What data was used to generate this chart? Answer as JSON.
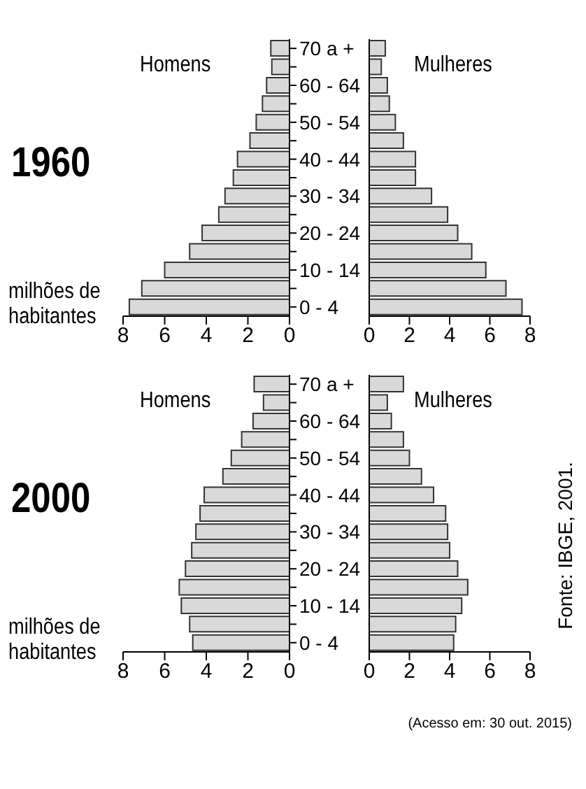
{
  "chart_data": [
    {
      "type": "bar",
      "orientation": "horizontal",
      "title": "1960",
      "xlabel": "milhões de habitantes",
      "categories": [
        "70 a +",
        null,
        "60 - 64",
        null,
        "50 - 54",
        null,
        "40 - 44",
        null,
        "30 - 34",
        null,
        "20 - 24",
        null,
        "10 - 14",
        null,
        "0 - 4"
      ],
      "xlim": [
        8,
        0
      ],
      "xticks": [
        8,
        6,
        4,
        2,
        0
      ],
      "series": [
        {
          "name": "Homens",
          "color": "#d9d9d9",
          "values": [
            0.9,
            0.85,
            1.1,
            1.3,
            1.6,
            1.9,
            2.5,
            2.7,
            3.1,
            3.4,
            4.2,
            4.8,
            6.0,
            7.1,
            7.7
          ]
        }
      ]
    },
    {
      "type": "bar",
      "orientation": "horizontal",
      "xlim": [
        0,
        8
      ],
      "xticks": [
        0,
        2,
        4,
        6,
        8
      ],
      "tick_labels": "x",
      "series": [
        {
          "name": "Mulheres",
          "color": "#d9d9d9",
          "values": [
            0.8,
            0.6,
            0.9,
            1.0,
            1.3,
            1.7,
            2.3,
            2.3,
            3.1,
            3.9,
            4.4,
            5.1,
            5.8,
            6.8,
            7.6
          ]
        }
      ]
    },
    {
      "type": "bar",
      "orientation": "horizontal",
      "title": "2000",
      "xlabel": "milhões de habitantes",
      "categories": [
        "70 a +",
        null,
        "60 - 64",
        null,
        "50 - 54",
        null,
        "40 - 44",
        null,
        "30 - 34",
        null,
        "20 - 24",
        null,
        "10 - 14",
        null,
        "0 - 4"
      ],
      "xlim": [
        8,
        0
      ],
      "xticks": [
        8,
        6,
        4,
        2,
        0
      ],
      "series": [
        {
          "name": "Homens",
          "color": "#d9d9d9",
          "values": [
            1.7,
            1.25,
            1.75,
            2.3,
            2.8,
            3.2,
            4.1,
            4.3,
            4.5,
            4.7,
            5.0,
            5.3,
            5.2,
            4.8,
            4.65
          ]
        }
      ]
    },
    {
      "type": "bar",
      "orientation": "horizontal",
      "xlim": [
        0,
        8
      ],
      "xticks": [
        0,
        2,
        4,
        6,
        8
      ],
      "tick_labels": "x",
      "annotations": [
        "Fonte: IBGE, 2001.",
        "(Acesso em: 30 out. 2015)"
      ],
      "series": [
        {
          "name": "Mulheres",
          "color": "#d9d9d9",
          "values": [
            1.7,
            0.9,
            1.1,
            1.7,
            2.0,
            2.6,
            3.2,
            3.8,
            3.9,
            4.0,
            4.4,
            4.9,
            4.6,
            4.3,
            4.2
          ]
        }
      ]
    }
  ]
}
